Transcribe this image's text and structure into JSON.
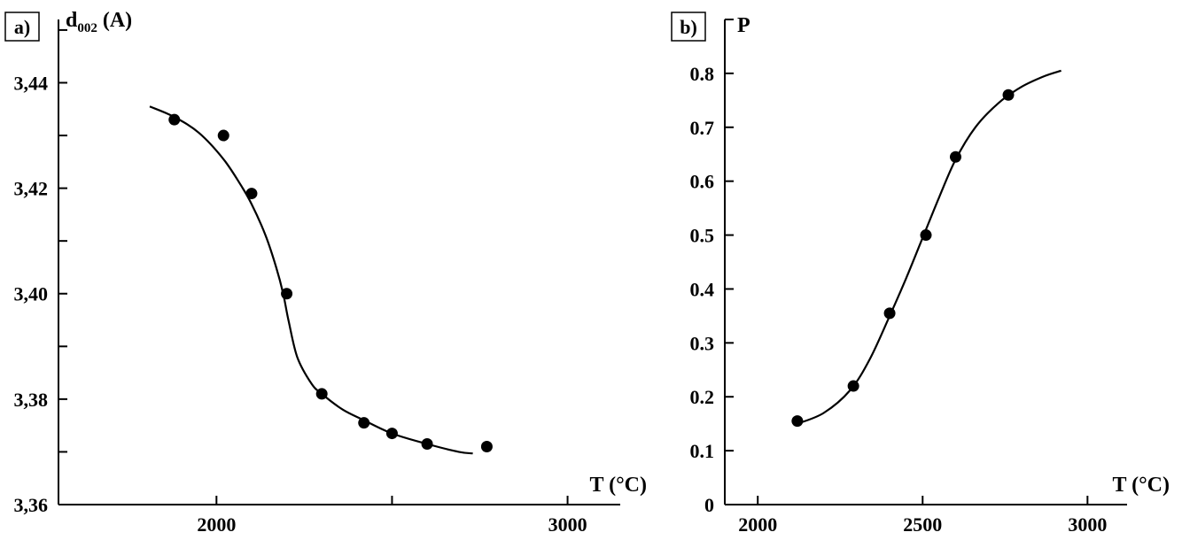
{
  "chart_data": [
    {
      "type": "scatter",
      "panel_label": "a)",
      "ylabel": "d",
      "ylabel_subscript": "002",
      "ylabel_unit": "(A)",
      "xlabel": "T (°C)",
      "xlim": [
        1550,
        3150
      ],
      "ylim": [
        3.36,
        3.452
      ],
      "x_ticks": [
        2000,
        3000
      ],
      "x_tick_labels": [
        "2000",
        "3000"
      ],
      "x_minor_ticks": [
        2500
      ],
      "y_ticks": [
        3.36,
        3.38,
        3.4,
        3.42,
        3.44
      ],
      "y_tick_labels": [
        "3,36",
        "3,38",
        "3,40",
        "3,42",
        "3,44"
      ],
      "y_minor_ticks": [
        3.37,
        3.39,
        3.41,
        3.43,
        3.45
      ],
      "grid": false,
      "series": [
        {
          "points": [
            {
              "x": 1880,
              "y": 3.433
            },
            {
              "x": 2020,
              "y": 3.43
            },
            {
              "x": 2100,
              "y": 3.419
            },
            {
              "x": 2200,
              "y": 3.4
            },
            {
              "x": 2300,
              "y": 3.381
            },
            {
              "x": 2420,
              "y": 3.3755
            },
            {
              "x": 2500,
              "y": 3.3735
            },
            {
              "x": 2600,
              "y": 3.3715
            },
            {
              "x": 2770,
              "y": 3.371
            }
          ],
          "fit_curve": [
            [
              1810,
              3.4355
            ],
            [
              1880,
              3.4335
            ],
            [
              1950,
              3.4305
            ],
            [
              2020,
              3.4255
            ],
            [
              2070,
              3.4205
            ],
            [
              2100,
              3.417
            ],
            [
              2140,
              3.411
            ],
            [
              2170,
              3.405
            ],
            [
              2190,
              3.4
            ],
            [
              2205,
              3.395
            ],
            [
              2230,
              3.388
            ],
            [
              2270,
              3.383
            ],
            [
              2300,
              3.381
            ],
            [
              2360,
              3.378
            ],
            [
              2420,
              3.376
            ],
            [
              2500,
              3.3735
            ],
            [
              2600,
              3.3715
            ],
            [
              2690,
              3.37
            ],
            [
              2730,
              3.3697
            ]
          ]
        }
      ]
    },
    {
      "type": "scatter",
      "panel_label": "b)",
      "ylabel": "P",
      "xlabel": "T (°C)",
      "xlim": [
        1900,
        3120
      ],
      "ylim": [
        0,
        0.9
      ],
      "x_ticks": [
        2000,
        2500,
        3000
      ],
      "x_tick_labels": [
        "2000",
        "2500",
        "3000"
      ],
      "y_ticks": [
        0,
        0.1,
        0.2,
        0.3,
        0.4,
        0.5,
        0.6,
        0.7,
        0.8
      ],
      "y_tick_labels": [
        "0",
        "0.1",
        "0.2",
        "0.3",
        "0.4",
        "0.5",
        "0.6",
        "0.7",
        "0.8"
      ],
      "y_minor_ticks": [
        0.9
      ],
      "grid": false,
      "series": [
        {
          "points": [
            {
              "x": 2120,
              "y": 0.155
            },
            {
              "x": 2290,
              "y": 0.22
            },
            {
              "x": 2400,
              "y": 0.355
            },
            {
              "x": 2510,
              "y": 0.5
            },
            {
              "x": 2600,
              "y": 0.645
            },
            {
              "x": 2760,
              "y": 0.76
            }
          ],
          "fit_curve": [
            [
              2120,
              0.15
            ],
            [
              2200,
              0.17
            ],
            [
              2280,
              0.212
            ],
            [
              2340,
              0.27
            ],
            [
              2400,
              0.35
            ],
            [
              2450,
              0.42
            ],
            [
              2500,
              0.495
            ],
            [
              2550,
              0.57
            ],
            [
              2600,
              0.64
            ],
            [
              2660,
              0.7
            ],
            [
              2730,
              0.745
            ],
            [
              2800,
              0.775
            ],
            [
              2870,
              0.795
            ],
            [
              2920,
              0.805
            ]
          ]
        }
      ]
    }
  ]
}
